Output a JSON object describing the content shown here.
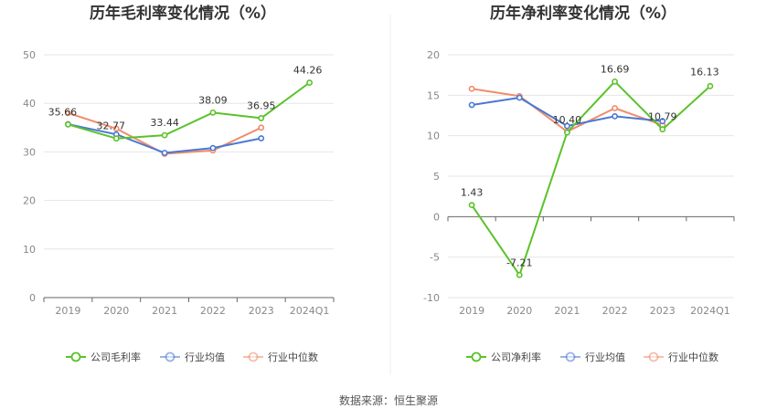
{
  "colors": {
    "company": "#5ac229",
    "industry_avg": "#4a78d4",
    "industry_median": "#f08c6c",
    "grid": "#e6e6e6",
    "axis": "#666666"
  },
  "source": "数据来源：恒生聚源",
  "chart_data": [
    {
      "type": "line",
      "title": "历年毛利率变化情况（%）",
      "categories": [
        "2019",
        "2020",
        "2021",
        "2022",
        "2023",
        "2024Q1"
      ],
      "ylim": [
        0,
        50
      ],
      "yticks": [
        0,
        10,
        20,
        30,
        40,
        50
      ],
      "grid": true,
      "legend_position": "bottom",
      "series": [
        {
          "key": "company",
          "name": "公司毛利率",
          "values": [
            35.66,
            32.77,
            33.44,
            38.09,
            36.95,
            44.26
          ],
          "labels": [
            "35.66",
            "32.77",
            "33.44",
            "38.09",
            "36.95",
            "44.26"
          ]
        },
        {
          "key": "industry_avg",
          "name": "行业均值",
          "values": [
            35.7,
            33.6,
            29.8,
            30.8,
            32.8,
            null
          ]
        },
        {
          "key": "industry_median",
          "name": "行业中位数",
          "values": [
            38.0,
            34.8,
            29.6,
            30.3,
            35.0,
            null
          ]
        }
      ]
    },
    {
      "type": "line",
      "title": "历年净利率变化情况（%）",
      "categories": [
        "2019",
        "2020",
        "2021",
        "2022",
        "2023",
        "2024Q1"
      ],
      "ylim": [
        -10,
        20
      ],
      "yticks": [
        -10,
        -5,
        0,
        5,
        10,
        15,
        20
      ],
      "grid": true,
      "legend_position": "bottom",
      "series": [
        {
          "key": "company",
          "name": "公司净利率",
          "values": [
            1.43,
            -7.21,
            10.4,
            16.69,
            10.79,
            16.13
          ],
          "labels": [
            "1.43",
            "-7.21",
            "10.40",
            "16.69",
            "10.79",
            "16.13"
          ]
        },
        {
          "key": "industry_avg",
          "name": "行业均值",
          "values": [
            13.8,
            14.7,
            11.2,
            12.4,
            11.8,
            null
          ]
        },
        {
          "key": "industry_median",
          "name": "行业中位数",
          "values": [
            15.8,
            14.9,
            10.5,
            13.4,
            11.3,
            null
          ]
        }
      ]
    }
  ]
}
